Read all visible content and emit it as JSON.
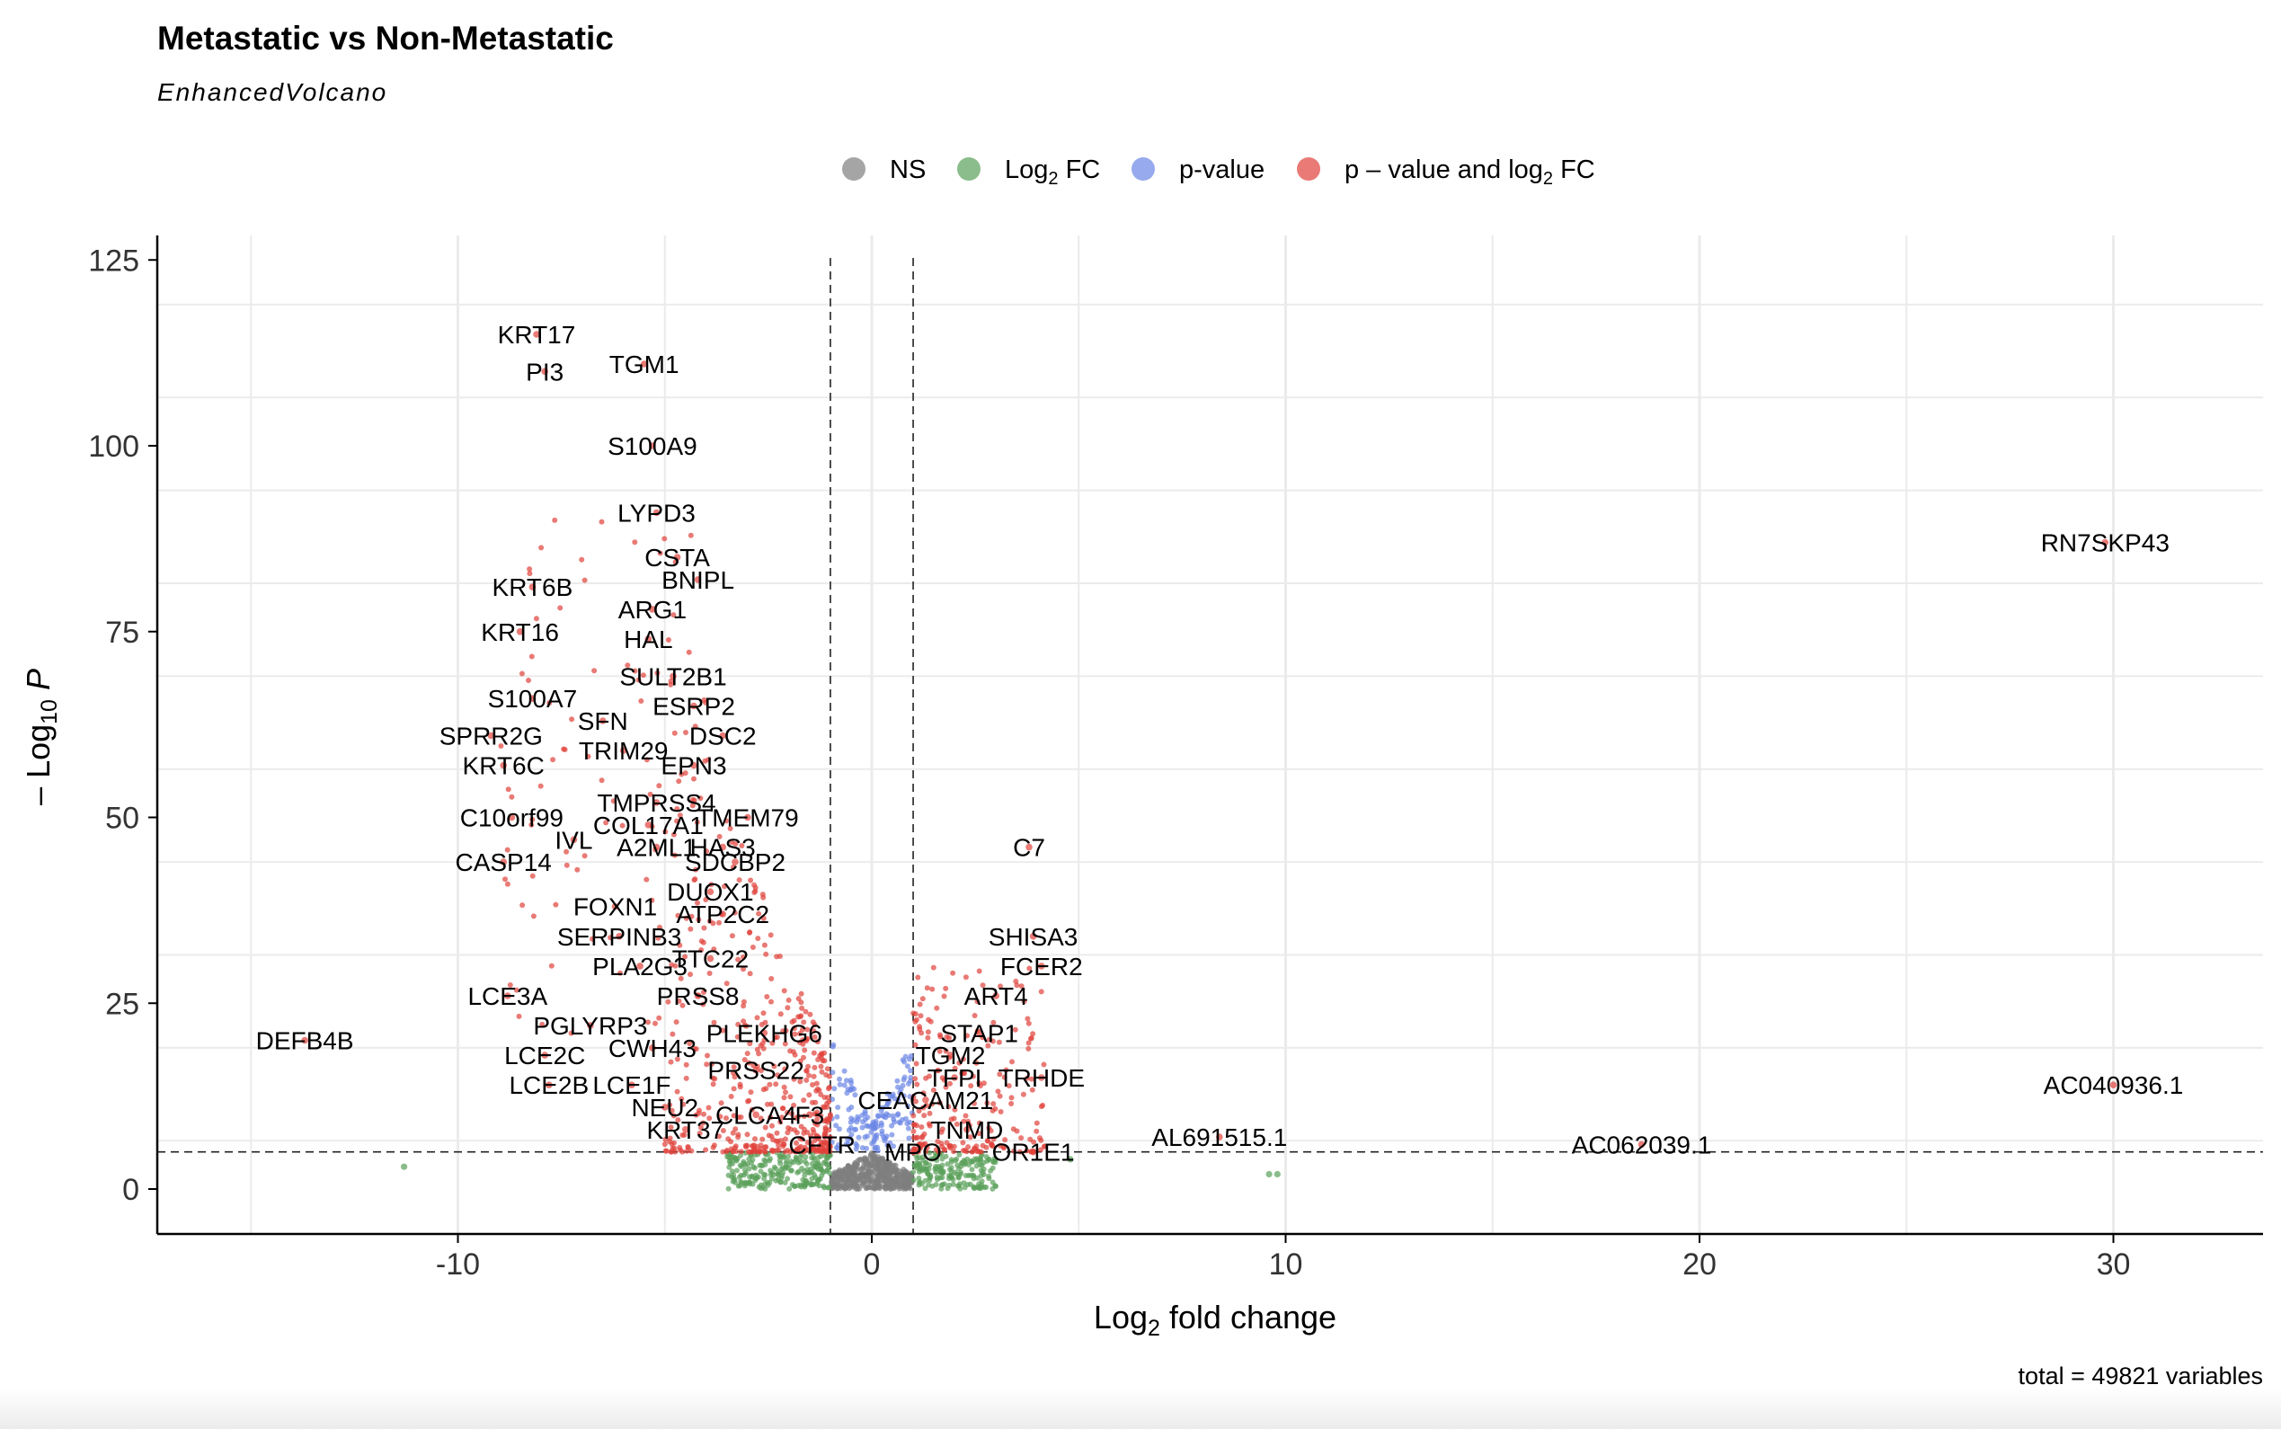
{
  "chart_data": {
    "type": "scatter",
    "title": "Metastatic vs Non-Metastatic",
    "subtitle": "EnhancedVolcano",
    "xlabel": "Log2 fold change",
    "ylabel": "-Log10 P",
    "caption": "total = 49821 variables",
    "xlim": [
      -17,
      34
    ],
    "ylim": [
      -6,
      125
    ],
    "xticks": [
      -10,
      0,
      10,
      20,
      30
    ],
    "xtick_labels": [
      "-10",
      "0",
      "10",
      "20",
      "30"
    ],
    "yticks": [
      0,
      25,
      50,
      75,
      100,
      125
    ],
    "ytick_labels": [
      "0",
      "25",
      "50",
      "75",
      "100",
      "125"
    ],
    "fc_cutoff": 1,
    "p_cutoff_neglog10": 5,
    "grid": true,
    "legend_position": "top",
    "legend": [
      {
        "key": "NS",
        "label": "NS",
        "color": "#7f7f7f"
      },
      {
        "key": "FC",
        "label": "Log2 FC",
        "color": "#5aa05a"
      },
      {
        "key": "P",
        "label": "p-value",
        "color": "#6b86e6"
      },
      {
        "key": "FC_P",
        "label": "p – value and log2 FC",
        "color": "#e0413a"
      }
    ],
    "labeled_genes": [
      {
        "label": "KRT17",
        "x": -8.1,
        "y": 115
      },
      {
        "label": "PI3",
        "x": -7.9,
        "y": 110
      },
      {
        "label": "TGM1",
        "x": -5.5,
        "y": 111
      },
      {
        "label": "S100A9",
        "x": -5.3,
        "y": 100
      },
      {
        "label": "LYPD3",
        "x": -5.2,
        "y": 91
      },
      {
        "label": "CSTA",
        "x": -4.7,
        "y": 85
      },
      {
        "label": "BNIPL",
        "x": -4.2,
        "y": 82
      },
      {
        "label": "KRT6B",
        "x": -8.2,
        "y": 81
      },
      {
        "label": "ARG1",
        "x": -5.3,
        "y": 78
      },
      {
        "label": "KRT16",
        "x": -8.5,
        "y": 75
      },
      {
        "label": "HAL",
        "x": -5.4,
        "y": 74
      },
      {
        "label": "SULT2B1",
        "x": -4.8,
        "y": 69
      },
      {
        "label": "S100A7",
        "x": -8.2,
        "y": 66
      },
      {
        "label": "ESRP2",
        "x": -4.3,
        "y": 65
      },
      {
        "label": "SFN",
        "x": -6.5,
        "y": 63
      },
      {
        "label": "SPRR2G",
        "x": -9.2,
        "y": 61
      },
      {
        "label": "DSC2",
        "x": -3.6,
        "y": 61
      },
      {
        "label": "TRIM29",
        "x": -6.0,
        "y": 59
      },
      {
        "label": "KRT6C",
        "x": -8.9,
        "y": 57
      },
      {
        "label": "EPN3",
        "x": -4.3,
        "y": 57
      },
      {
        "label": "TMPRSS4",
        "x": -5.2,
        "y": 52
      },
      {
        "label": "TMEM79",
        "x": -3.0,
        "y": 50
      },
      {
        "label": "C10orf99",
        "x": -8.7,
        "y": 50
      },
      {
        "label": "COL17A1",
        "x": -5.4,
        "y": 49
      },
      {
        "label": "IVL",
        "x": -7.2,
        "y": 47
      },
      {
        "label": "A2ML1",
        "x": -5.2,
        "y": 46
      },
      {
        "label": "HAS3",
        "x": -3.6,
        "y": 46
      },
      {
        "label": "CASP14",
        "x": -8.9,
        "y": 44
      },
      {
        "label": "SDCBP2",
        "x": -3.3,
        "y": 44
      },
      {
        "label": "DUOX1",
        "x": -3.9,
        "y": 40
      },
      {
        "label": "FOXN1",
        "x": -6.2,
        "y": 38
      },
      {
        "label": "ATP2C2",
        "x": -3.6,
        "y": 37
      },
      {
        "label": "SERPINB3",
        "x": -6.1,
        "y": 34
      },
      {
        "label": "TTC22",
        "x": -3.9,
        "y": 31
      },
      {
        "label": "PLA2G3",
        "x": -5.6,
        "y": 30
      },
      {
        "label": "PRSS8",
        "x": -4.2,
        "y": 26
      },
      {
        "label": "LCE3A",
        "x": -8.8,
        "y": 26
      },
      {
        "label": "PGLYRP3",
        "x": -6.8,
        "y": 22
      },
      {
        "label": "PLEKHG6",
        "x": -2.6,
        "y": 21
      },
      {
        "label": "DEFB4B",
        "x": -13.7,
        "y": 20
      },
      {
        "label": "CWH43",
        "x": -5.3,
        "y": 19
      },
      {
        "label": "LCE2C",
        "x": -7.9,
        "y": 18
      },
      {
        "label": "PRSS22",
        "x": -2.8,
        "y": 16
      },
      {
        "label": "LCE1F",
        "x": -5.8,
        "y": 14
      },
      {
        "label": "LCE2B",
        "x": -7.8,
        "y": 14
      },
      {
        "label": "NEU2",
        "x": -5.0,
        "y": 11
      },
      {
        "label": "CLCA4",
        "x": -2.8,
        "y": 10
      },
      {
        "label": "F3",
        "x": -1.5,
        "y": 10
      },
      {
        "label": "KRT37",
        "x": -4.5,
        "y": 8
      },
      {
        "label": "CFTR",
        "x": -1.2,
        "y": 6
      },
      {
        "label": "C7",
        "x": 3.8,
        "y": 46
      },
      {
        "label": "SHISA3",
        "x": 3.9,
        "y": 34
      },
      {
        "label": "FCER2",
        "x": 4.1,
        "y": 30
      },
      {
        "label": "ART4",
        "x": 3.0,
        "y": 26
      },
      {
        "label": "STAP1",
        "x": 2.6,
        "y": 21
      },
      {
        "label": "TGM2",
        "x": 1.9,
        "y": 18
      },
      {
        "label": "TFPI",
        "x": 2.0,
        "y": 15
      },
      {
        "label": "TRHDE",
        "x": 4.1,
        "y": 15
      },
      {
        "label": "CEACAM21",
        "x": 1.3,
        "y": 12
      },
      {
        "label": "TNMD",
        "x": 2.3,
        "y": 8
      },
      {
        "label": "MPO",
        "x": 1.0,
        "y": 5
      },
      {
        "label": "OR1E1",
        "x": 3.9,
        "y": 5
      },
      {
        "label": "AL691515.1",
        "x": 8.4,
        "y": 7
      },
      {
        "label": "AC062039.1",
        "x": 18.6,
        "y": 6
      },
      {
        "label": "AC040936.1",
        "x": 30.0,
        "y": 14
      },
      {
        "label": "RN7SKP43",
        "x": 29.8,
        "y": 87
      }
    ],
    "extra_points": [
      {
        "x": -11.3,
        "y": 3,
        "class": "FC"
      },
      {
        "x": 9.6,
        "y": 2,
        "class": "FC"
      },
      {
        "x": 9.8,
        "y": 2,
        "class": "FC"
      },
      {
        "x": 4.8,
        "y": 4,
        "class": "FC"
      }
    ]
  }
}
